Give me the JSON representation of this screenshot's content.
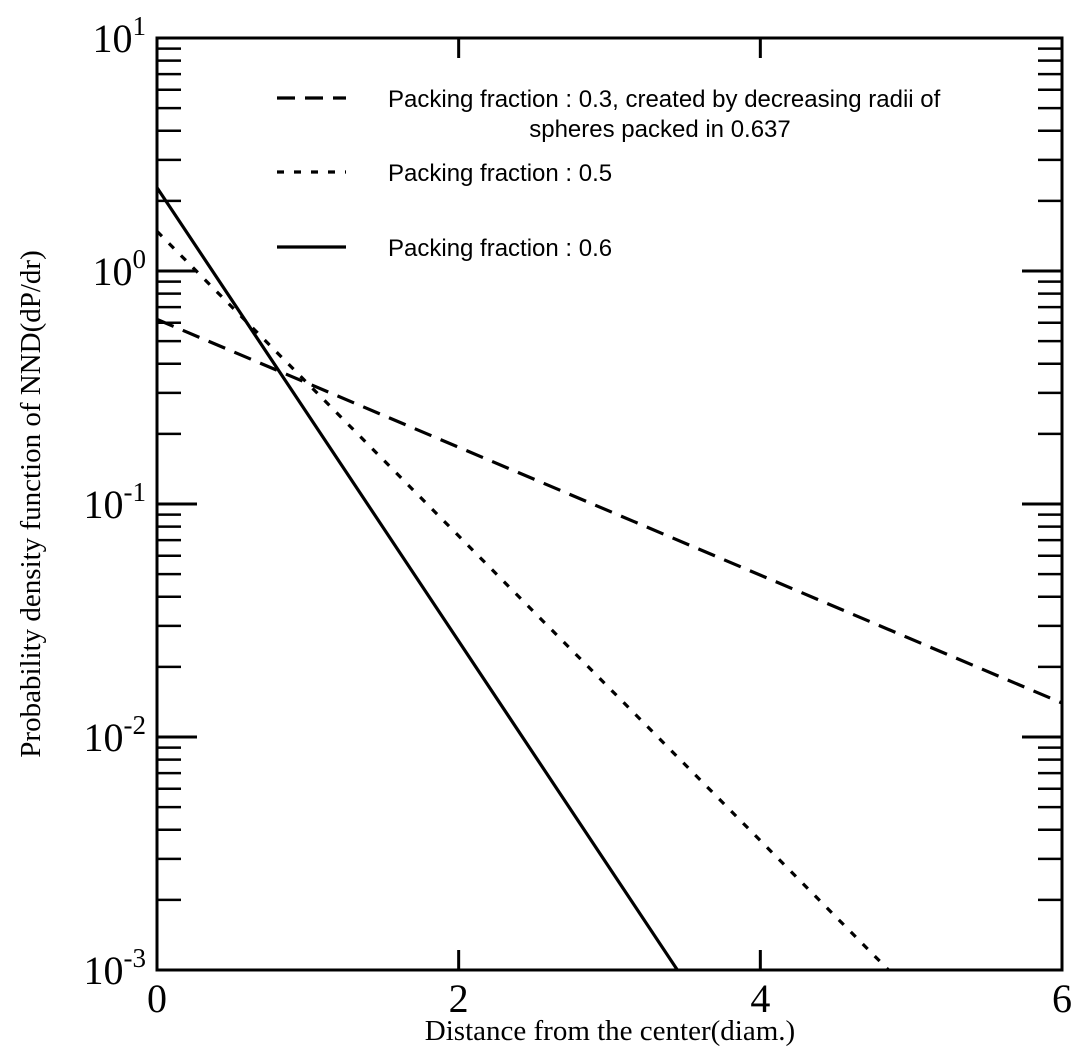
{
  "chart_data": {
    "type": "line",
    "title": "",
    "xlabel": "Distance from the center(diam.)",
    "ylabel": "Probability density function of NND(dP/dr)",
    "xlim": [
      0,
      6
    ],
    "ylim": [
      0.001,
      10
    ],
    "yscale": "log",
    "grid": false,
    "legend_position": "top-right",
    "x_ticks": [
      {
        "value": 0,
        "label": "0"
      },
      {
        "value": 2,
        "label": "2"
      },
      {
        "value": 4,
        "label": "4"
      },
      {
        "value": 6,
        "label": "6"
      }
    ],
    "y_ticks": [
      {
        "value": 10,
        "base": "10",
        "exp": "1"
      },
      {
        "value": 1,
        "base": "10",
        "exp": "0"
      },
      {
        "value": 0.1,
        "base": "10",
        "exp": "-1"
      },
      {
        "value": 0.01,
        "base": "10",
        "exp": "-2"
      },
      {
        "value": 0.001,
        "base": "10",
        "exp": "-3"
      }
    ],
    "series": [
      {
        "name": "Packing fraction : 0.3, created by decreasing radii of spheres packed in 0.637",
        "legend_lines": [
          "Packing fraction : 0.3, created by decreasing radii of",
          "spheres packed in 0.637"
        ],
        "style": "dashed",
        "color": "#000000",
        "x": [
          0,
          6
        ],
        "y": [
          0.62,
          0.014
        ]
      },
      {
        "name": "Packing fraction : 0.5",
        "legend_lines": [
          "Packing fraction : 0.5"
        ],
        "style": "dotted",
        "color": "#000000",
        "x": [
          0,
          4.85
        ],
        "y": [
          1.48,
          0.001
        ]
      },
      {
        "name": "Packing fraction : 0.6",
        "legend_lines": [
          "Packing fraction : 0.6"
        ],
        "style": "solid",
        "color": "#000000",
        "x": [
          0,
          3.45
        ],
        "y": [
          2.28,
          0.001
        ]
      }
    ]
  }
}
